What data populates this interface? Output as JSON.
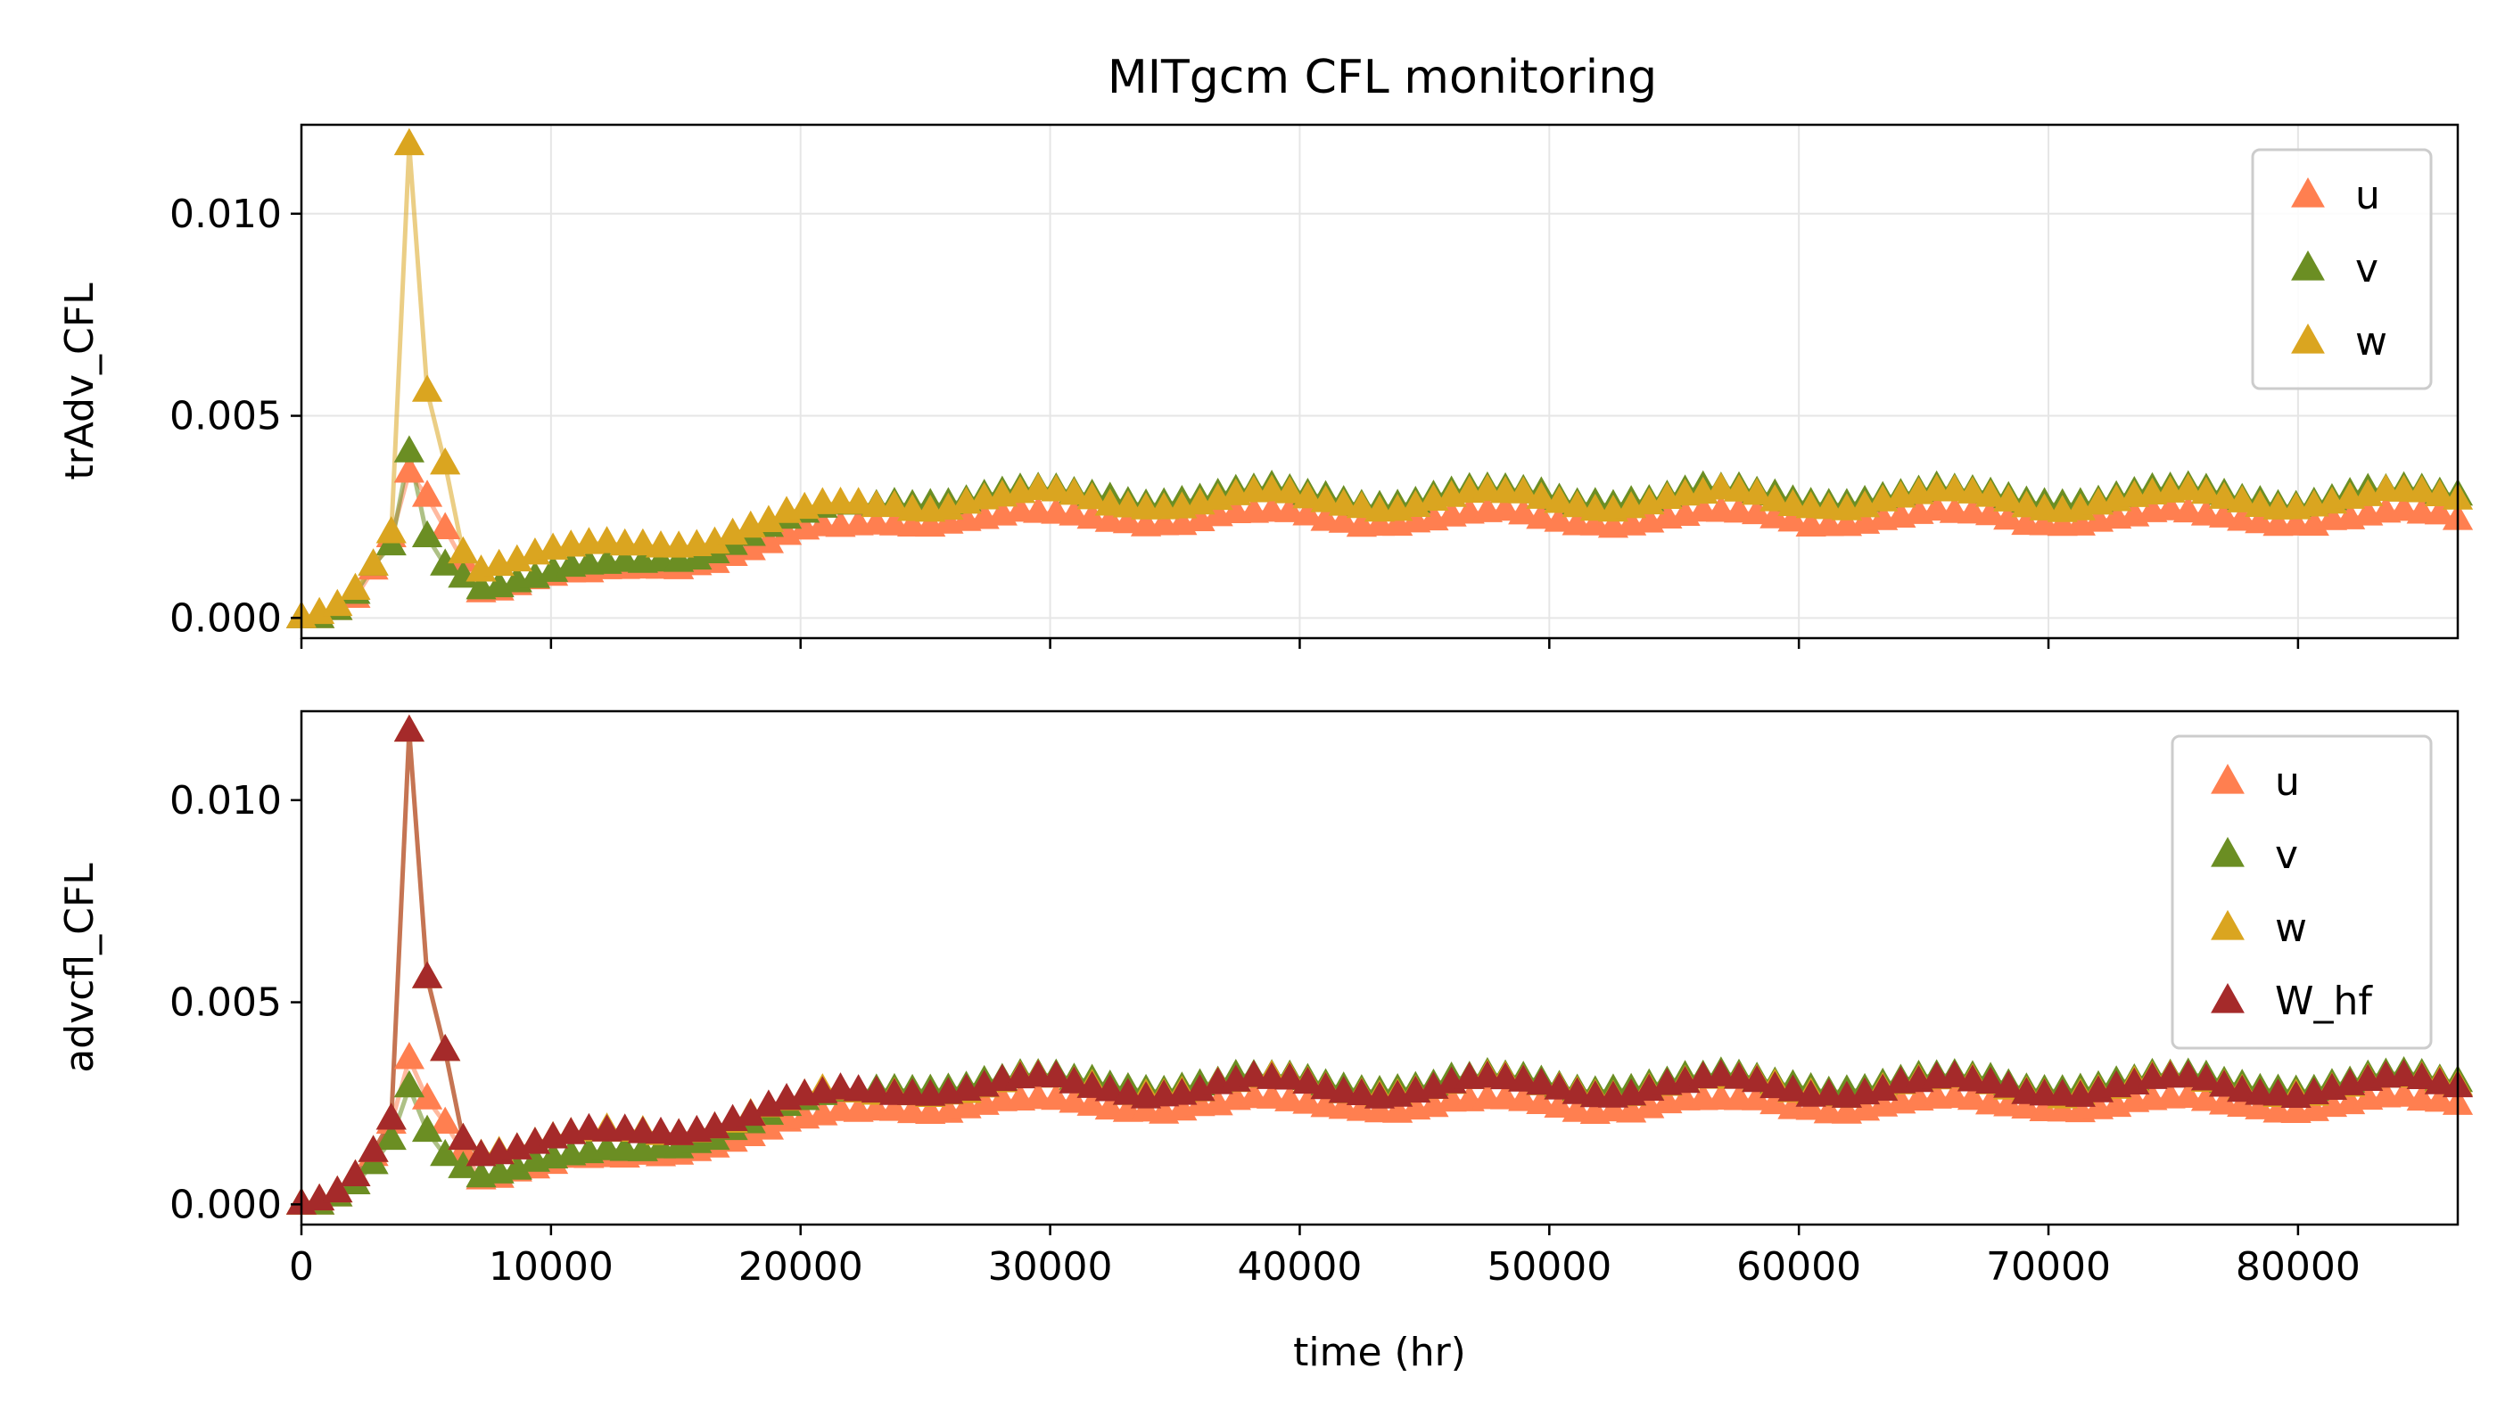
{
  "colors": {
    "u": "#ff7f50",
    "v": "#6b8e23",
    "w": "#daa520",
    "W_hf": "#a52a2a"
  },
  "chart_data": [
    {
      "type": "line",
      "title": "MITgcm CFL monitoring",
      "ylabel": "trAdv_CFL",
      "xlabel": "",
      "xlim": [
        0,
        86400
      ],
      "ylim": [
        -0.0005,
        0.0122
      ],
      "xticks": [
        0,
        10000,
        20000,
        30000,
        40000,
        50000,
        60000,
        70000,
        80000
      ],
      "yticks": [
        0.0,
        0.005,
        0.01
      ],
      "ytick_labels": [
        "0.000",
        "0.005",
        "0.010"
      ],
      "xtick_labels_shown": false,
      "grid": true,
      "legend_placement": "top-right",
      "marker": "triangle",
      "series": [
        {
          "name": "u",
          "color": "#ff7f50",
          "peak": 0.0036,
          "x": [
            0,
            720,
            1440,
            2160,
            2880,
            3600,
            4320,
            5040,
            5760,
            6480
          ],
          "values": [
            0.0,
            0.0,
            0.0002,
            0.0005,
            0.0012,
            0.002,
            0.0036,
            0.003,
            0.0022,
            0.0014
          ]
        },
        {
          "name": "v",
          "color": "#6b8e23",
          "peak": 0.0041,
          "x": [
            0,
            720,
            1440,
            2160,
            2880,
            3600,
            4320,
            5040,
            5760,
            6480
          ],
          "values": [
            0.0,
            0.0,
            0.0002,
            0.0006,
            0.0013,
            0.0018,
            0.0041,
            0.002,
            0.0013,
            0.001
          ]
        },
        {
          "name": "w",
          "color": "#daa520",
          "peak": 0.0117,
          "x": [
            0,
            720,
            1440,
            2160,
            2880,
            3600,
            4320,
            5040,
            5760,
            6480
          ],
          "values": [
            0.0,
            0.0001,
            0.0003,
            0.0007,
            0.0013,
            0.0021,
            0.0117,
            0.0056,
            0.0038,
            0.0016
          ]
        }
      ]
    },
    {
      "type": "line",
      "title": "",
      "ylabel": "advcfl_CFL",
      "xlabel": "time (hr)",
      "xlim": [
        0,
        86400
      ],
      "ylim": [
        -0.0005,
        0.0122
      ],
      "xticks": [
        0,
        10000,
        20000,
        30000,
        40000,
        50000,
        60000,
        70000,
        80000
      ],
      "xtick_labels": [
        "0",
        "10000",
        "20000",
        "30000",
        "40000",
        "50000",
        "60000",
        "70000",
        "80000"
      ],
      "yticks": [
        0.0,
        0.005,
        0.01
      ],
      "ytick_labels": [
        "0.000",
        "0.005",
        "0.010"
      ],
      "grid": false,
      "legend_placement": "top-right",
      "marker": "triangle",
      "series": [
        {
          "name": "u",
          "color": "#ff7f50",
          "peak": 0.0036,
          "x": [
            0,
            720,
            1440,
            2160,
            2880,
            3600,
            4320,
            5040,
            5760,
            6480
          ],
          "values": [
            0.0,
            0.0,
            0.0002,
            0.0005,
            0.0012,
            0.002,
            0.0036,
            0.0026,
            0.002,
            0.0013
          ]
        },
        {
          "name": "v",
          "color": "#6b8e23",
          "peak": 0.0029,
          "x": [
            0,
            720,
            1440,
            2160,
            2880,
            3600,
            4320,
            5040,
            5760,
            6480
          ],
          "values": [
            0.0,
            0.0,
            0.0002,
            0.0005,
            0.001,
            0.0016,
            0.0029,
            0.0018,
            0.0012,
            0.0009
          ]
        },
        {
          "name": "w",
          "color": "#daa520",
          "peak": 0.0117,
          "x": [
            0,
            720,
            1440,
            2160,
            2880,
            3600,
            4320,
            5040,
            5760,
            6480
          ],
          "values": [
            0.0,
            0.0001,
            0.0003,
            0.0007,
            0.0013,
            0.0021,
            0.0117,
            0.0056,
            0.0038,
            0.0016
          ]
        },
        {
          "name": "W_hf",
          "color": "#a52a2a",
          "peak": 0.0117,
          "x": [
            0,
            720,
            1440,
            2160,
            2880,
            3600,
            4320,
            5040,
            5760,
            6480
          ],
          "values": [
            0.0,
            0.0001,
            0.0003,
            0.0007,
            0.0013,
            0.0021,
            0.0117,
            0.0056,
            0.0038,
            0.0016
          ]
        }
      ]
    }
  ]
}
